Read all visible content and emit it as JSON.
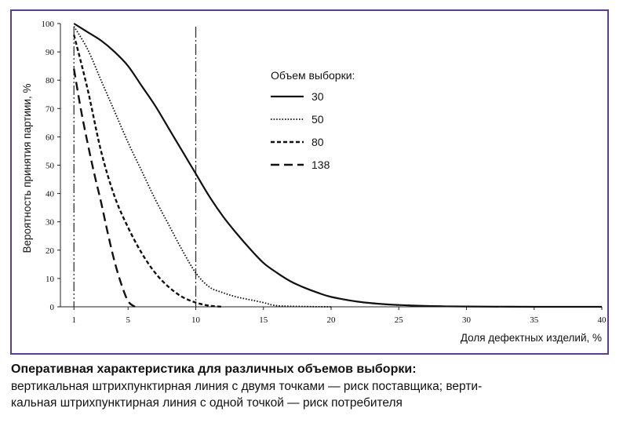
{
  "chart_data": {
    "type": "line",
    "title": "",
    "xlabel": "Доля дефектных изделий, %",
    "ylabel": "Вероятность принятия партиии, %",
    "xlim": [
      0,
      40
    ],
    "ylim": [
      0,
      100
    ],
    "xticks": [
      1,
      5,
      10,
      15,
      20,
      25,
      30,
      35,
      40
    ],
    "yticks": [
      0,
      10,
      20,
      30,
      40,
      50,
      60,
      70,
      80,
      90,
      100
    ],
    "grid": false,
    "legend_title": "Объем выборки:",
    "legend_position": "upper-middle",
    "series": [
      {
        "name": "30",
        "style": "solid",
        "x": [
          1,
          2,
          3,
          4,
          5,
          6,
          7,
          8,
          9,
          10,
          11,
          12,
          13,
          14,
          15,
          16,
          17,
          18,
          19,
          20,
          22,
          24,
          26,
          28,
          30,
          35,
          40
        ],
        "y": [
          100,
          97,
          94,
          90,
          85,
          78,
          71,
          63,
          55,
          47,
          39,
          32,
          26,
          20.5,
          15.5,
          12,
          9,
          6.8,
          5,
          3.5,
          1.8,
          0.9,
          0.45,
          0.2,
          0.1,
          0,
          0
        ]
      },
      {
        "name": "50",
        "style": "dotted",
        "x": [
          1,
          2,
          3,
          4,
          5,
          6,
          7,
          8,
          9,
          10,
          11,
          12,
          13,
          14,
          15,
          16,
          18,
          20
        ],
        "y": [
          99,
          91,
          80,
          69,
          58,
          48,
          38,
          29,
          20,
          12,
          7,
          5,
          3.5,
          2.5,
          1.5,
          0.4,
          0.1,
          0
        ]
      },
      {
        "name": "80",
        "style": "dashed",
        "x": [
          1,
          2,
          3,
          4,
          5,
          6,
          7,
          8,
          9,
          10,
          11,
          12
        ],
        "y": [
          96,
          77,
          55,
          39,
          28,
          19,
          12,
          7,
          3.5,
          1.5,
          0.4,
          0
        ]
      },
      {
        "name": "138",
        "style": "long-dash",
        "x": [
          1,
          1.5,
          2,
          2.5,
          3,
          3.5,
          4,
          4.5,
          5,
          5.5
        ],
        "y": [
          84,
          70,
          58,
          47,
          37,
          26,
          16,
          8,
          2,
          0
        ]
      }
    ],
    "reference_lines": [
      {
        "x": 1,
        "style": "dash-dot-dot"
      },
      {
        "x": 10,
        "style": "dash-dot"
      }
    ]
  },
  "caption": {
    "title": "Оперативная характеристика для различных объемов выборки:",
    "lines": [
      "вертикальная штрихпунктирная линия с двумя точками — риск поставщика; верти-",
      "кальная штрихпунктирная линия с одной точкой — риск потребителя"
    ]
  }
}
